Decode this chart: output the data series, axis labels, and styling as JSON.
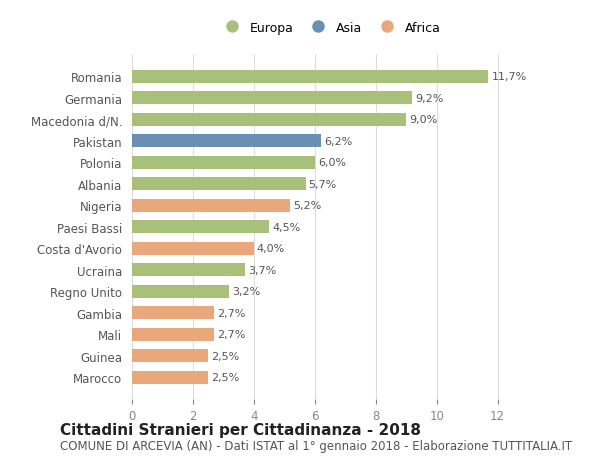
{
  "countries": [
    "Marocco",
    "Guinea",
    "Mali",
    "Gambia",
    "Regno Unito",
    "Ucraina",
    "Costa d'Avorio",
    "Paesi Bassi",
    "Nigeria",
    "Albania",
    "Polonia",
    "Pakistan",
    "Macedonia d/N.",
    "Germania",
    "Romania"
  ],
  "values": [
    2.5,
    2.5,
    2.7,
    2.7,
    3.2,
    3.7,
    4.0,
    4.5,
    5.2,
    5.7,
    6.0,
    6.2,
    9.0,
    9.2,
    11.7
  ],
  "continents": [
    "Africa",
    "Africa",
    "Africa",
    "Africa",
    "Europa",
    "Europa",
    "Africa",
    "Europa",
    "Africa",
    "Europa",
    "Europa",
    "Asia",
    "Europa",
    "Europa",
    "Europa"
  ],
  "labels": [
    "2,5%",
    "2,5%",
    "2,7%",
    "2,7%",
    "3,2%",
    "3,7%",
    "4,0%",
    "4,5%",
    "5,2%",
    "5,7%",
    "6,0%",
    "6,2%",
    "9,0%",
    "9,2%",
    "11,7%"
  ],
  "colors": {
    "Europa": "#a8c07a",
    "Asia": "#6a8fb5",
    "Africa": "#e8a87c"
  },
  "legend_order": [
    "Europa",
    "Asia",
    "Africa"
  ],
  "xlim": [
    0,
    13
  ],
  "xticks": [
    0,
    2,
    4,
    6,
    8,
    10,
    12
  ],
  "background_color": "#ffffff",
  "grid_color": "#dddddd",
  "title": "Cittadini Stranieri per Cittadinanza - 2018",
  "subtitle": "COMUNE DI ARCEVIA (AN) - Dati ISTAT al 1° gennaio 2018 - Elaborazione TUTTITALIA.IT",
  "title_fontsize": 11,
  "subtitle_fontsize": 8.5,
  "bar_height": 0.6
}
